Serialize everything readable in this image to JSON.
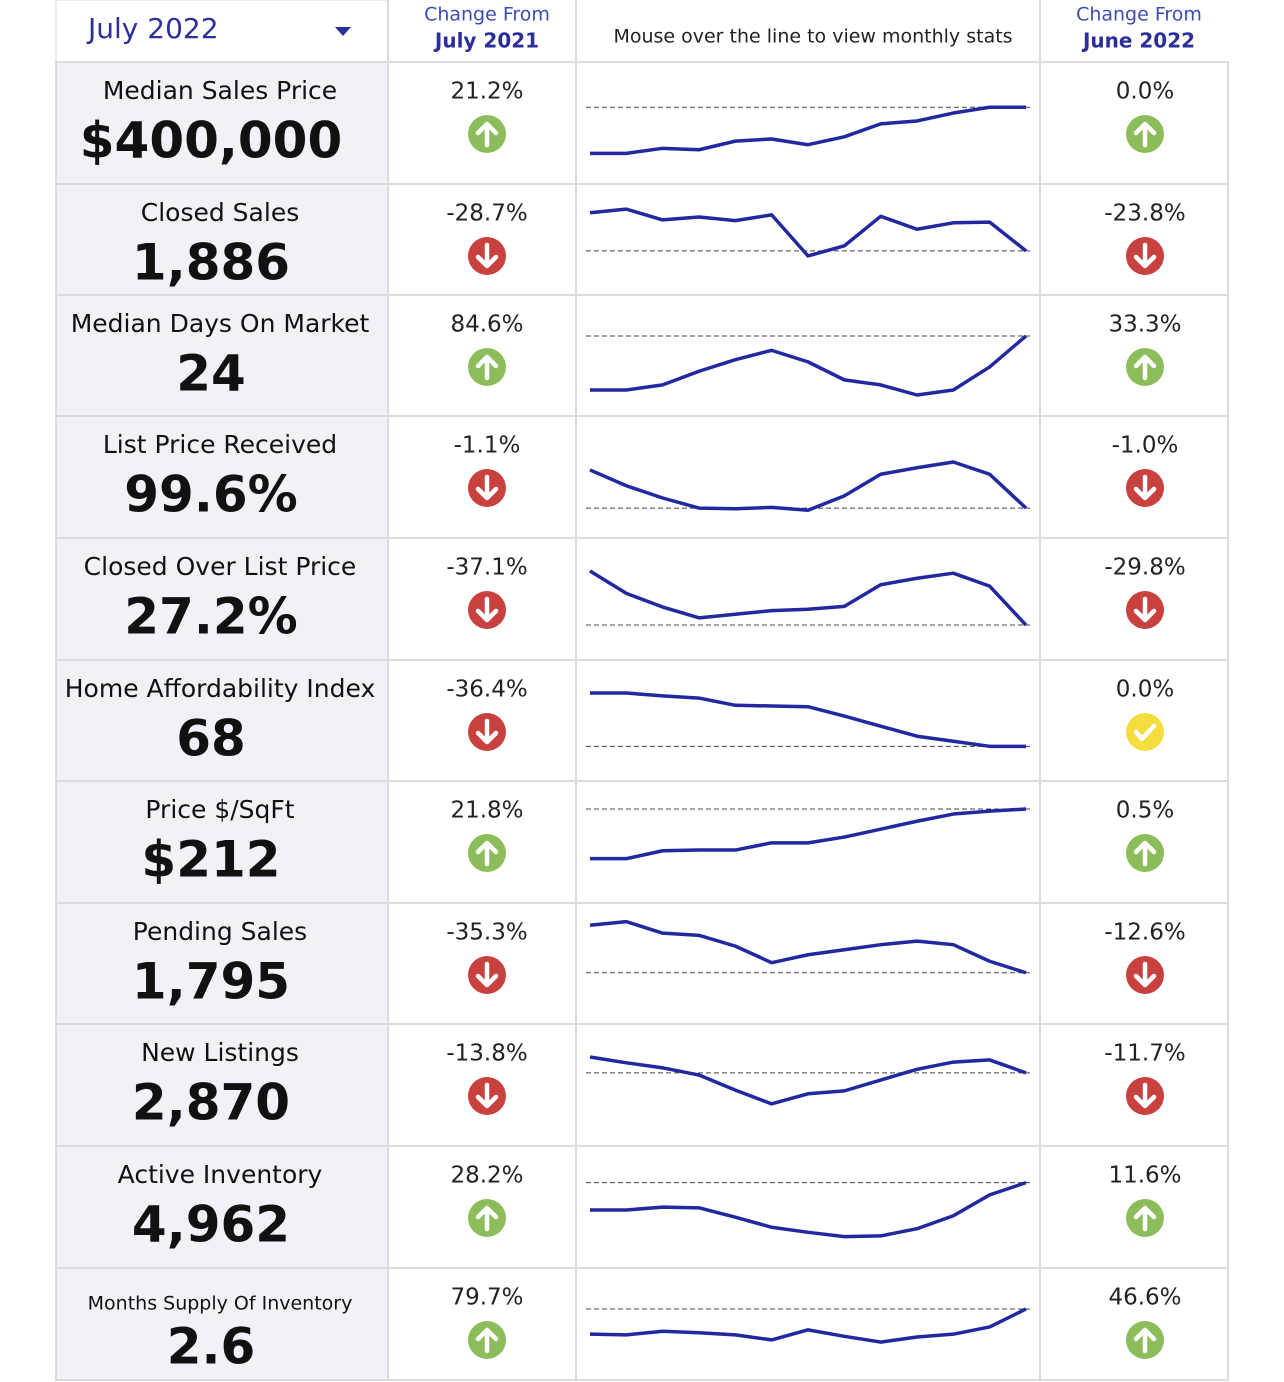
{
  "header": {
    "period": "July 2022",
    "change_year_line1": "Change From",
    "change_year_line2": "July 2021",
    "hint": "Mouse over the line to view monthly stats",
    "change_month_line1": "Change From",
    "change_month_line2": "June 2022"
  },
  "rows": [
    {
      "label": "Median Sales Price",
      "value": "$400,000",
      "change_year": "21.2%",
      "direction_year": "up",
      "change_month": "0.0%",
      "direction_month": "up",
      "trend": [
        12,
        12,
        19,
        17,
        29,
        32,
        24,
        35,
        53,
        57,
        68,
        76,
        76
      ]
    },
    {
      "label": "Closed Sales",
      "value": "1,886",
      "change_year": "-28.7%",
      "direction_year": "down",
      "change_month": "-23.8%",
      "direction_month": "down",
      "trend": [
        99,
        104,
        89,
        93,
        88,
        96,
        39,
        53,
        94,
        76,
        85,
        86,
        46
      ]
    },
    {
      "label": "Median Days On Market",
      "value": "24",
      "change_year": "84.6%",
      "direction_year": "up",
      "change_month": "33.3%",
      "direction_month": "up",
      "trend": [
        7,
        7,
        14,
        33,
        49,
        62,
        46,
        21,
        14,
        0,
        7,
        39,
        82
      ]
    },
    {
      "label": "List Price Received",
      "value": "99.6%",
      "change_year": "-1.1%",
      "direction_year": "down",
      "change_month": "-1.0%",
      "direction_month": "down",
      "trend": [
        64,
        42,
        25,
        11,
        10,
        12,
        8,
        28,
        58,
        67,
        75,
        58,
        11
      ]
    },
    {
      "label": "Closed Over List Price",
      "value": "27.2%",
      "change_year": "-37.1%",
      "direction_year": "down",
      "change_month": "-29.8%",
      "direction_month": "down",
      "trend": [
        93,
        62,
        43,
        28,
        33,
        38,
        40,
        44,
        74,
        83,
        90,
        72,
        18
      ]
    },
    {
      "label": "Home Affordability Index",
      "value": "68",
      "change_year": "-36.4%",
      "direction_year": "down",
      "change_month": "0.0%",
      "direction_month": "flat",
      "trend": [
        93,
        93,
        89,
        86,
        76,
        75,
        74,
        61,
        47,
        33,
        26,
        19,
        19
      ]
    },
    {
      "label": "Price $/SqFt",
      "value": "$212",
      "change_year": "21.8%",
      "direction_year": "up",
      "change_month": "0.5%",
      "direction_month": "up",
      "trend": [
        31,
        31,
        42,
        43,
        43,
        53,
        53,
        61,
        72,
        83,
        93,
        97,
        100
      ]
    },
    {
      "label": "Pending Sales",
      "value": "1,795",
      "change_year": "-35.3%",
      "direction_year": "down",
      "change_month": "-12.6%",
      "direction_month": "down",
      "trend": [
        108,
        113,
        97,
        94,
        79,
        56,
        67,
        74,
        81,
        86,
        81,
        58,
        42
      ]
    },
    {
      "label": "New Listings",
      "value": "2,870",
      "change_year": "-13.8%",
      "direction_year": "down",
      "change_month": "-11.7%",
      "direction_month": "down",
      "trend": [
        93,
        85,
        78,
        68,
        47,
        28,
        42,
        46,
        61,
        76,
        86,
        89,
        71
      ]
    },
    {
      "label": "Active Inventory",
      "value": "4,962",
      "change_year": "28.2%",
      "direction_year": "up",
      "change_month": "11.6%",
      "direction_month": "up",
      "trend": [
        50,
        50,
        54,
        53,
        40,
        26,
        19,
        13,
        14,
        24,
        42,
        71,
        88
      ]
    },
    {
      "label": "Months Supply Of Inventory",
      "value": "2.6",
      "change_year": "79.7%",
      "direction_year": "up",
      "change_month": "46.6%",
      "direction_month": "up",
      "trend": [
        47,
        46,
        51,
        49,
        46,
        39,
        53,
        44,
        36,
        43,
        47,
        57,
        82
      ]
    }
  ]
}
